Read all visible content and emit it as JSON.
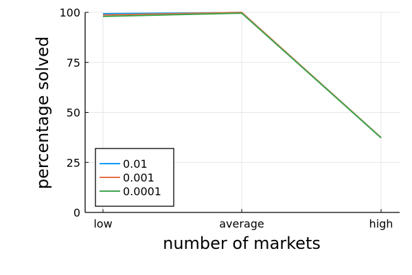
{
  "chart_data": {
    "type": "line",
    "title": "",
    "xlabel": "number of markets",
    "ylabel": "percentage solved",
    "categories": [
      "low",
      "average",
      "high"
    ],
    "ylim": [
      0,
      100
    ],
    "yticks": [
      0,
      25,
      50,
      75,
      100
    ],
    "grid": true,
    "legend_position": "bottom-left",
    "series": [
      {
        "name": "0.01",
        "color": "#009AFA",
        "values": [
          99.3,
          99.9,
          37.3
        ]
      },
      {
        "name": "0.001",
        "color": "#E26F46",
        "values": [
          98.7,
          100.0,
          37.4
        ]
      },
      {
        "name": "0.0001",
        "color": "#3DA44D",
        "values": [
          98.0,
          99.6,
          37.3
        ]
      }
    ]
  }
}
